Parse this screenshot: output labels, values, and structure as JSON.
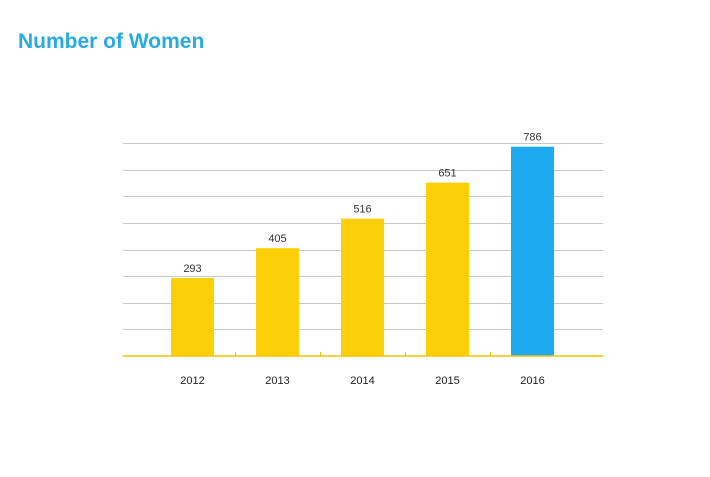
{
  "page": {
    "title": "Number of Women"
  },
  "colors": {
    "title": "#29abe2",
    "bar_default": "#fcd008",
    "bar_highlight": "#1eaaf1",
    "axis": "#f2c400",
    "grid": "#c8c8c8"
  },
  "chart_data": {
    "type": "bar",
    "title": "Number of Women",
    "xlabel": "",
    "ylabel": "",
    "categories": [
      "2012",
      "2013",
      "2014",
      "2015",
      "2016"
    ],
    "values": [
      293,
      405,
      516,
      651,
      786
    ],
    "highlight_category": "2016",
    "ylim": [
      0,
      800
    ],
    "grid": true,
    "gridline_count": 8,
    "data_labels": true,
    "legend": "none"
  }
}
